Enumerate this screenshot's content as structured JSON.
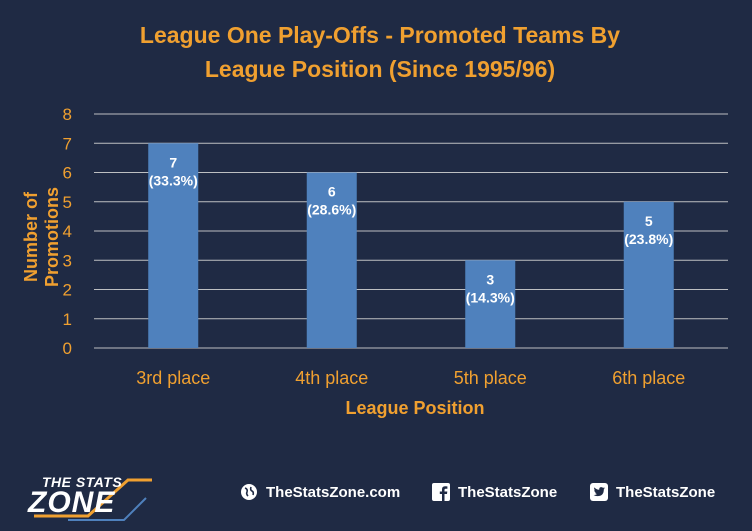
{
  "chart_data": {
    "type": "bar",
    "title": "League One Play-Offs - Promoted Teams By League Position (Since 1995/96)",
    "title_lines": [
      "League One Play-Offs - Promoted Teams By",
      "League Position (Since 1995/96)"
    ],
    "xlabel": "League Position",
    "ylabel": "Number of Promotions",
    "categories": [
      "3rd place",
      "4th place",
      "5th place",
      "6th place"
    ],
    "values": [
      7,
      6,
      3,
      5
    ],
    "data_labels": [
      [
        "7",
        "(33.3%)"
      ],
      [
        "6",
        "(28.6%)"
      ],
      [
        "3",
        "(14.3%)"
      ],
      [
        "5",
        "(23.8%)"
      ]
    ],
    "ylim": [
      0,
      8
    ],
    "yticks": [
      0,
      1,
      2,
      3,
      4,
      5,
      6,
      7,
      8
    ],
    "grid": true,
    "legend": "none"
  },
  "colors": {
    "background": "#1f2a44",
    "bar": "#4f81bd",
    "accent": "#f0a030",
    "grid": "#d9d9d9",
    "text": "#ffffff"
  },
  "footer": {
    "logo_top": "THE STATS",
    "logo_main": "ZONE",
    "website": "TheStatsZone.com",
    "website_icon": "globe-icon",
    "facebook": "TheStatsZone",
    "facebook_icon": "facebook-icon",
    "twitter": "TheStatsZone",
    "twitter_icon": "twitter-icon"
  }
}
